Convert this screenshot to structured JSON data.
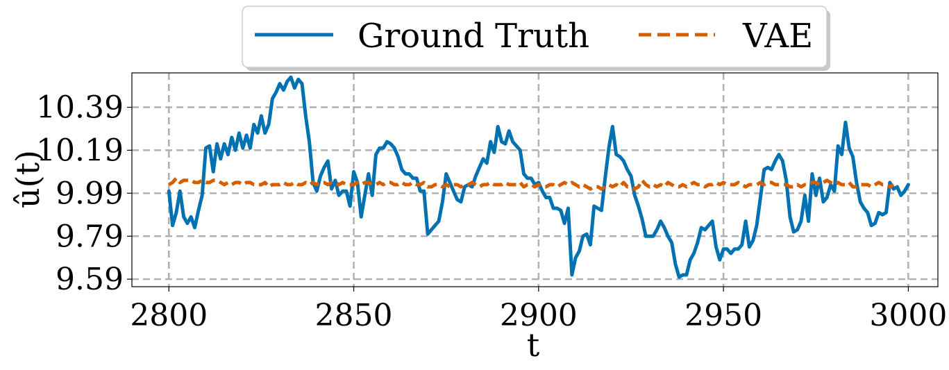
{
  "chart_data": {
    "type": "line",
    "xlabel": "t",
    "ylabel": "û(t)",
    "xlim": [
      2790,
      3008
    ],
    "ylim": [
      9.555,
      10.55
    ],
    "x_ticks": [
      2800,
      2850,
      2900,
      2950,
      3000
    ],
    "x_tick_labels": [
      "2800",
      "2850",
      "2900",
      "2950",
      "3000"
    ],
    "y_ticks": [
      9.59,
      9.79,
      9.99,
      10.19,
      10.39
    ],
    "y_tick_labels": [
      "9.59",
      "9.79",
      "9.99",
      "10.19",
      "10.39"
    ],
    "grid": true,
    "legend": {
      "placement": "top-center, above plot",
      "columns": 2
    },
    "x_start": 2800,
    "x_step": 1,
    "series": [
      {
        "name": "Ground Truth",
        "color": "#0072B2",
        "style": "solid",
        "values": [
          10.0,
          9.84,
          9.9,
          10.0,
          9.88,
          9.85,
          9.88,
          9.83,
          9.91,
          9.98,
          10.2,
          10.21,
          10.09,
          10.22,
          10.15,
          10.22,
          10.17,
          10.25,
          10.19,
          10.27,
          10.2,
          10.26,
          10.2,
          10.31,
          10.27,
          10.35,
          10.27,
          10.31,
          10.43,
          10.46,
          10.5,
          10.47,
          10.51,
          10.53,
          10.48,
          10.52,
          10.5,
          10.35,
          10.23,
          10.04,
          10.0,
          10.07,
          10.11,
          10.14,
          10.01,
          10.05,
          9.98,
          10.0,
          10.0,
          9.93,
          10.09,
          10.04,
          9.88,
          9.98,
          10.08,
          9.98,
          10.17,
          10.2,
          10.2,
          10.23,
          10.22,
          10.2,
          10.16,
          10.1,
          10.08,
          10.08,
          10.06,
          10.06,
          10.0,
          10.0,
          9.8,
          9.82,
          9.84,
          9.86,
          9.95,
          10.08,
          10.04,
          10.0,
          9.96,
          9.95,
          10.02,
          10.03,
          10.02,
          10.07,
          10.11,
          10.15,
          10.13,
          10.23,
          10.18,
          10.3,
          10.23,
          10.22,
          10.28,
          10.23,
          10.21,
          10.19,
          10.08,
          10.06,
          10.06,
          10.03,
          10.04,
          10.0,
          9.97,
          9.97,
          9.92,
          9.92,
          9.91,
          9.85,
          9.92,
          9.61,
          9.69,
          9.72,
          9.79,
          9.8,
          9.75,
          9.93,
          9.92,
          9.91,
          10.06,
          10.2,
          10.3,
          10.17,
          10.16,
          10.14,
          10.1,
          10.07,
          9.98,
          9.93,
          9.87,
          9.79,
          9.79,
          9.79,
          9.82,
          9.86,
          9.83,
          9.79,
          9.76,
          9.66,
          9.6,
          9.61,
          9.61,
          9.68,
          9.71,
          9.76,
          9.83,
          9.82,
          9.84,
          9.86,
          9.74,
          9.68,
          9.73,
          9.73,
          9.71,
          9.73,
          9.73,
          9.75,
          9.86,
          9.74,
          9.77,
          9.84,
          9.97,
          10.1,
          10.11,
          10.1,
          10.14,
          10.17,
          10.14,
          10.05,
          9.88,
          9.81,
          9.82,
          9.86,
          9.98,
          9.86,
          10.08,
          9.98,
          10.06,
          9.95,
          9.97,
          10.03,
          10.0,
          10.21,
          10.17,
          10.32,
          10.2,
          10.16,
          10.04,
          9.95,
          9.92,
          9.9,
          9.84,
          9.85,
          9.9,
          9.89,
          9.9,
          10.04,
          10.01,
          10.02,
          9.98,
          10.0,
          10.03
        ]
      },
      {
        "name": "VAE",
        "color": "#D55E00",
        "style": "dashed",
        "values": [
          10.03,
          10.04,
          10.06,
          10.04,
          10.05,
          10.05,
          10.05,
          10.04,
          10.04,
          10.05,
          10.04,
          10.04,
          10.05,
          10.05,
          10.04,
          10.03,
          10.04,
          10.03,
          10.04,
          10.04,
          10.03,
          10.04,
          10.04,
          10.03,
          10.03,
          10.03,
          10.04,
          10.02,
          10.03,
          10.03,
          10.03,
          10.04,
          10.03,
          10.03,
          10.04,
          10.03,
          10.03,
          10.04,
          10.03,
          10.04,
          10.03,
          10.04,
          10.04,
          10.03,
          10.04,
          10.04,
          10.03,
          10.04,
          10.03,
          10.03,
          10.03,
          10.04,
          10.03,
          10.04,
          10.04,
          10.03,
          10.03,
          10.04,
          10.03,
          10.04,
          10.04,
          10.03,
          10.03,
          10.04,
          10.03,
          10.03,
          10.04,
          10.03,
          10.03,
          10.04,
          10.02,
          10.02,
          10.03,
          10.03,
          10.02,
          10.03,
          10.02,
          10.03,
          10.03,
          10.02,
          10.03,
          10.03,
          10.04,
          10.03,
          10.02,
          10.03,
          10.03,
          10.04,
          10.03,
          10.03,
          10.03,
          10.04,
          10.03,
          10.03,
          10.03,
          10.04,
          10.02,
          10.03,
          10.03,
          10.02,
          10.03,
          10.02,
          10.02,
          10.03,
          10.03,
          10.02,
          10.03,
          10.04,
          10.03,
          10.04,
          10.03,
          10.02,
          10.03,
          10.02,
          10.01,
          10.02,
          10.02,
          10.01,
          10.02,
          10.03,
          10.02,
          10.03,
          10.02,
          10.04,
          10.02,
          10.02,
          10.01,
          10.02,
          10.05,
          10.03,
          10.02,
          10.03,
          10.02,
          10.03,
          10.02,
          10.04,
          10.03,
          10.02,
          10.02,
          10.03,
          10.02,
          10.03,
          10.04,
          10.03,
          10.03,
          10.02,
          10.03,
          10.03,
          10.04,
          10.03,
          10.04,
          10.03,
          10.03,
          10.03,
          10.04,
          10.03,
          10.02,
          10.03,
          10.03,
          10.03,
          10.04,
          10.03,
          10.04,
          10.04,
          10.03,
          10.03,
          10.03,
          10.03,
          10.02,
          10.02,
          10.03,
          10.02,
          10.03,
          10.03,
          10.04,
          10.04,
          10.03,
          10.04,
          10.05,
          10.04,
          10.03,
          10.04,
          10.03,
          10.03,
          10.04,
          10.02,
          10.02,
          10.03,
          10.03,
          10.03,
          10.02,
          10.03,
          10.04,
          10.03,
          10.03,
          10.02,
          10.03
        ]
      }
    ]
  }
}
